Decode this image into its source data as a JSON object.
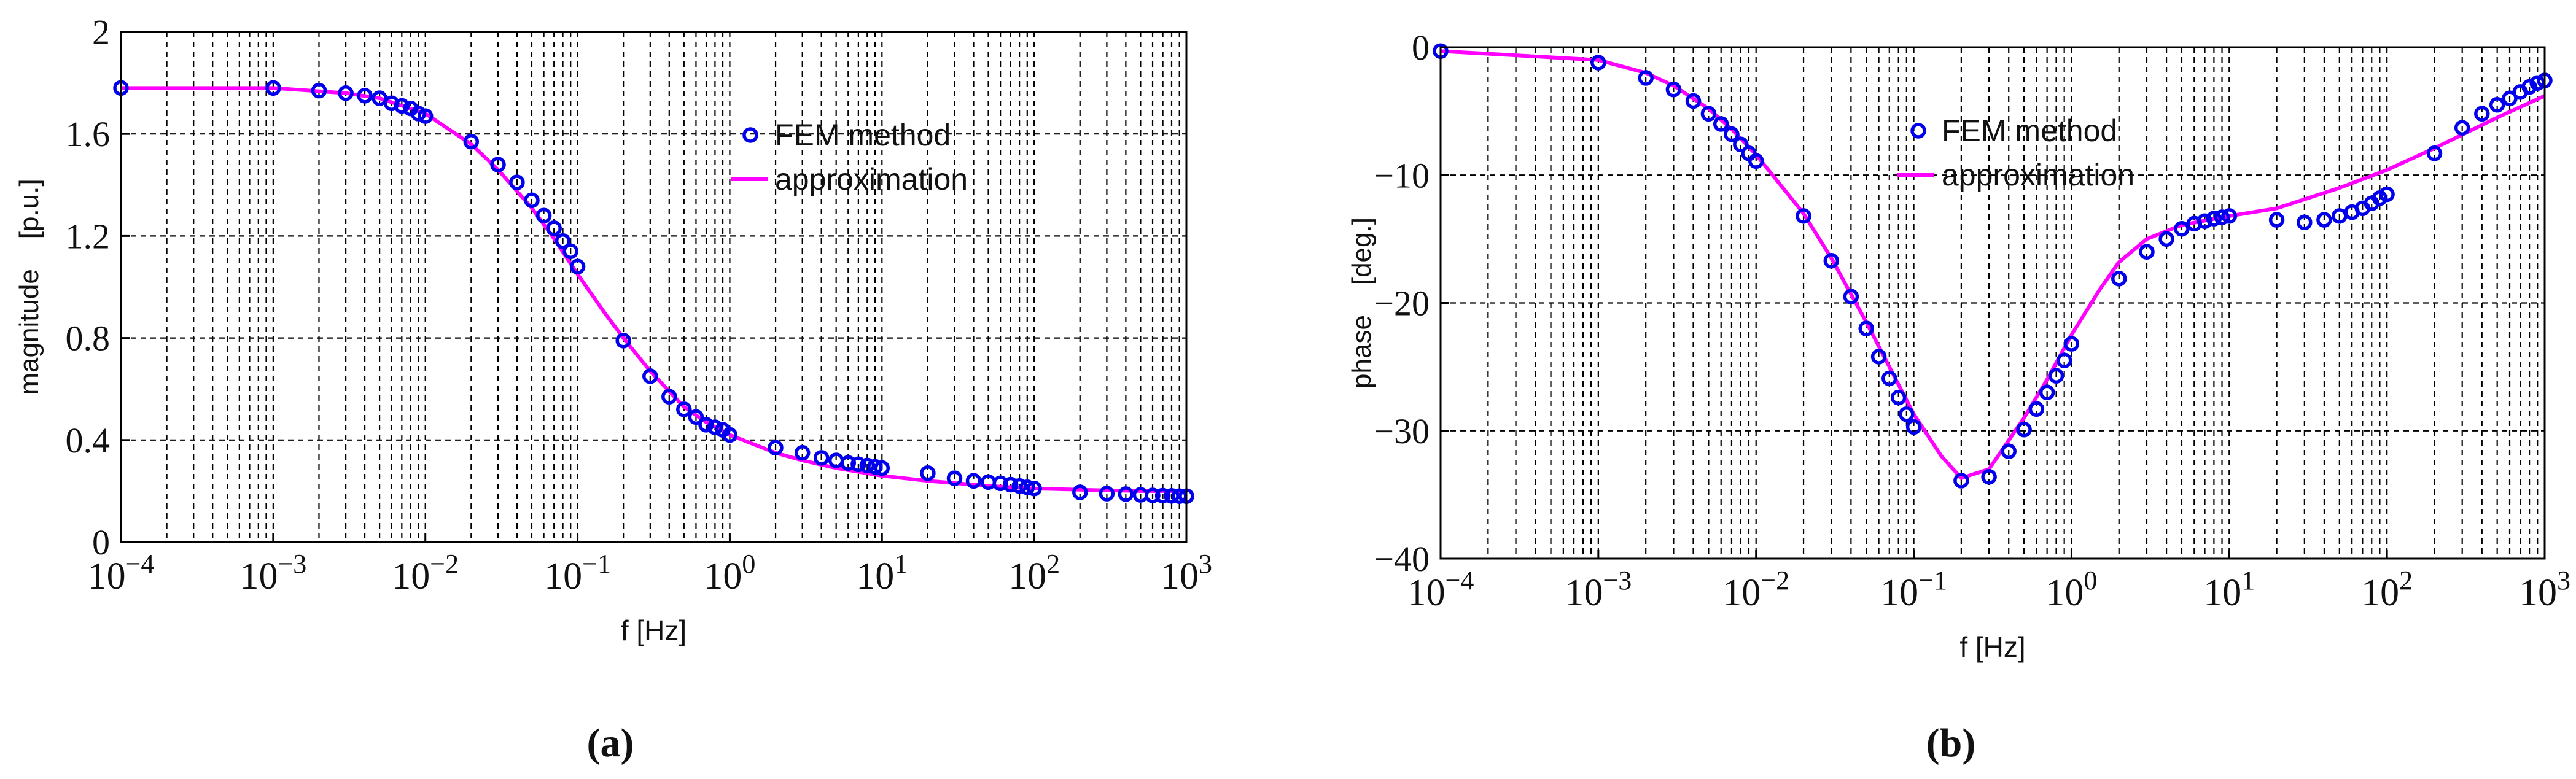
{
  "chart_data": [
    {
      "type": "line",
      "panel_label": "(a)",
      "xlabel": "f [Hz]",
      "ylabel": "magnitude    [p.u.]",
      "xscale": "log",
      "xlim": [
        0.0001,
        1000
      ],
      "ylim": [
        0,
        2
      ],
      "grid": true,
      "legend_placement": "top-right",
      "xticks": [
        0.0001,
        0.001,
        0.01,
        0.1,
        1,
        10,
        100,
        1000
      ],
      "xtick_labels": [
        {
          "base": "10",
          "exp": "−4"
        },
        {
          "base": "10",
          "exp": "−3"
        },
        {
          "base": "10",
          "exp": "−2"
        },
        {
          "base": "10",
          "exp": "−1"
        },
        {
          "base": "10",
          "exp": "0"
        },
        {
          "base": "10",
          "exp": "1"
        },
        {
          "base": "10",
          "exp": "2"
        },
        {
          "base": "10",
          "exp": "3"
        }
      ],
      "yticks": [
        0,
        0.4,
        0.8,
        1.2,
        1.6,
        2
      ],
      "ytick_labels": [
        "0",
        "0.4",
        "0.8",
        "1.2",
        "1.6",
        "2"
      ],
      "series": [
        {
          "name": "FEM method",
          "style": "markers",
          "color": "#0000ee",
          "x": [
            0.0001,
            0.001,
            0.002,
            0.003,
            0.004,
            0.005,
            0.006,
            0.007,
            0.008,
            0.009,
            0.01,
            0.02,
            0.03,
            0.04,
            0.05,
            0.06,
            0.07,
            0.08,
            0.09,
            0.1,
            0.2,
            0.3,
            0.4,
            0.5,
            0.6,
            0.7,
            0.8,
            0.9,
            1,
            2,
            3,
            4,
            5,
            6,
            7,
            8,
            9,
            10,
            20,
            30,
            40,
            50,
            60,
            70,
            80,
            90,
            100,
            200,
            300,
            400,
            500,
            600,
            700,
            800,
            900,
            1000
          ],
          "y": [
            1.78,
            1.78,
            1.77,
            1.76,
            1.75,
            1.74,
            1.72,
            1.71,
            1.7,
            1.68,
            1.67,
            1.57,
            1.48,
            1.41,
            1.34,
            1.28,
            1.23,
            1.18,
            1.14,
            1.08,
            0.79,
            0.65,
            0.57,
            0.52,
            0.49,
            0.46,
            0.45,
            0.44,
            0.42,
            0.37,
            0.35,
            0.33,
            0.32,
            0.31,
            0.305,
            0.3,
            0.295,
            0.29,
            0.27,
            0.25,
            0.24,
            0.235,
            0.23,
            0.225,
            0.22,
            0.215,
            0.21,
            0.195,
            0.19,
            0.188,
            0.185,
            0.183,
            0.182,
            0.181,
            0.18,
            0.18
          ]
        },
        {
          "name": "approximation",
          "style": "line",
          "color": "#ff00ff",
          "x": [
            0.0001,
            0.001,
            0.003,
            0.005,
            0.01,
            0.02,
            0.03,
            0.05,
            0.07,
            0.1,
            0.15,
            0.2,
            0.3,
            0.5,
            0.7,
            1,
            2,
            3,
            5,
            10,
            20,
            50,
            100,
            200,
            500,
            1000
          ],
          "y": [
            1.78,
            1.78,
            1.76,
            1.74,
            1.68,
            1.56,
            1.46,
            1.31,
            1.19,
            1.05,
            0.9,
            0.8,
            0.67,
            0.53,
            0.47,
            0.42,
            0.35,
            0.32,
            0.29,
            0.26,
            0.24,
            0.22,
            0.21,
            0.205,
            0.2,
            0.2
          ]
        }
      ]
    },
    {
      "type": "line",
      "panel_label": "(b)",
      "xlabel": "f [Hz]",
      "ylabel": "phase    [deg.]",
      "xscale": "log",
      "xlim": [
        0.0001,
        1000
      ],
      "ylim": [
        -40,
        0
      ],
      "grid": true,
      "legend_placement": "top-right",
      "xticks": [
        0.0001,
        0.001,
        0.01,
        0.1,
        1,
        10,
        100,
        1000
      ],
      "xtick_labels": [
        {
          "base": "10",
          "exp": "−4"
        },
        {
          "base": "10",
          "exp": "−3"
        },
        {
          "base": "10",
          "exp": "−2"
        },
        {
          "base": "10",
          "exp": "−1"
        },
        {
          "base": "10",
          "exp": "0"
        },
        {
          "base": "10",
          "exp": "1"
        },
        {
          "base": "10",
          "exp": "2"
        },
        {
          "base": "10",
          "exp": "3"
        }
      ],
      "yticks": [
        -40,
        -30,
        -20,
        -10,
        0
      ],
      "ytick_labels": [
        "−40",
        "−30",
        "−20",
        "−10",
        "0"
      ],
      "series": [
        {
          "name": "FEM method",
          "style": "markers",
          "color": "#0000ee",
          "x": [
            0.0001,
            0.001,
            0.002,
            0.003,
            0.004,
            0.005,
            0.006,
            0.007,
            0.008,
            0.009,
            0.01,
            0.02,
            0.03,
            0.04,
            0.05,
            0.06,
            0.07,
            0.08,
            0.09,
            0.1,
            0.2,
            0.3,
            0.4,
            0.5,
            0.6,
            0.7,
            0.8,
            0.9,
            1,
            2,
            3,
            4,
            5,
            6,
            7,
            8,
            9,
            10,
            20,
            30,
            40,
            50,
            60,
            70,
            80,
            90,
            100,
            200,
            300,
            400,
            500,
            600,
            700,
            800,
            900,
            1000
          ],
          "y": [
            -0.3,
            -1.2,
            -2.4,
            -3.3,
            -4.2,
            -5.2,
            -6.0,
            -6.8,
            -7.6,
            -8.3,
            -8.9,
            -13.2,
            -16.7,
            -19.5,
            -22.0,
            -24.2,
            -25.9,
            -27.4,
            -28.7,
            -29.7,
            -33.9,
            -33.6,
            -31.6,
            -29.9,
            -28.3,
            -27.0,
            -25.7,
            -24.5,
            -23.2,
            -18.1,
            -16.0,
            -15.0,
            -14.2,
            -13.8,
            -13.6,
            -13.4,
            -13.3,
            -13.2,
            -13.5,
            -13.7,
            -13.5,
            -13.2,
            -12.9,
            -12.6,
            -12.2,
            -11.8,
            -11.5,
            -8.3,
            -6.3,
            -5.2,
            -4.5,
            -4.0,
            -3.5,
            -3.1,
            -2.8,
            -2.6
          ]
        },
        {
          "name": "approximation",
          "style": "line",
          "color": "#ff00ff",
          "x": [
            0.0001,
            0.001,
            0.002,
            0.003,
            0.005,
            0.007,
            0.01,
            0.02,
            0.03,
            0.05,
            0.07,
            0.1,
            0.15,
            0.2,
            0.3,
            0.5,
            0.7,
            1,
            1.5,
            2,
            3,
            5,
            10,
            20,
            50,
            100,
            200,
            500,
            1000
          ],
          "y": [
            -0.3,
            -1.0,
            -2.0,
            -3.0,
            -4.8,
            -6.4,
            -8.4,
            -13.0,
            -16.5,
            -21.5,
            -25.0,
            -28.7,
            -32.0,
            -33.7,
            -33.0,
            -29.0,
            -26.0,
            -22.5,
            -19.0,
            -16.8,
            -15.0,
            -13.9,
            -13.2,
            -12.6,
            -11.0,
            -9.6,
            -7.9,
            -5.5,
            -3.8
          ]
        }
      ]
    }
  ]
}
